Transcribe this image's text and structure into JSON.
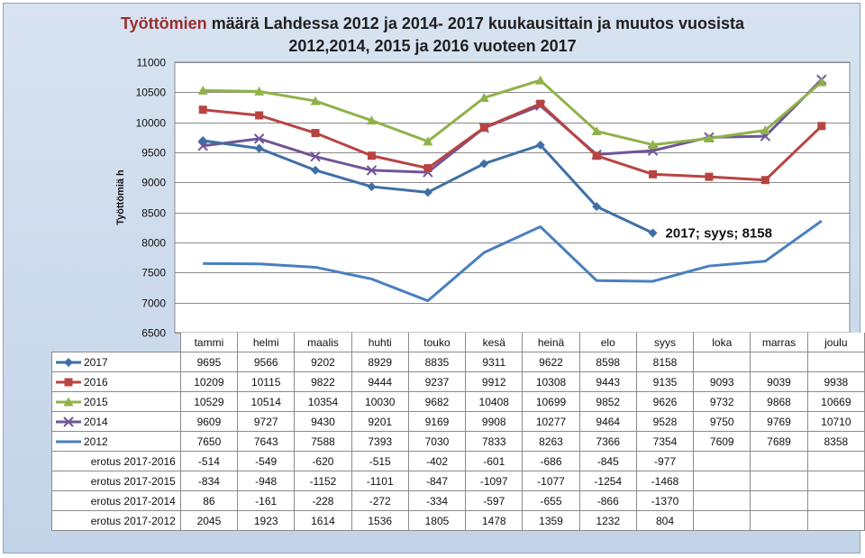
{
  "title": {
    "part1": "Työttömien",
    "part2": " määrä Lahdessa 2012 ja 2014- 2017 kuukausittain ja muutos vuosista",
    "line2": "2012,2014, 2015 ja 2016 vuoteen 2017"
  },
  "chart_data": {
    "type": "line",
    "title": "Työttömien määrä Lahdessa 2012 ja 2014- 2017 kuukausittain ja muutos vuosista 2012,2014, 2015 ja 2016 vuoteen 2017",
    "ylabel": "Työttömiä h",
    "ylim": [
      6500,
      11000
    ],
    "yticks": [
      6500,
      7000,
      7500,
      8000,
      8500,
      9000,
      9500,
      10000,
      10500,
      11000
    ],
    "grid": true,
    "categories": [
      "tammi",
      "helmi",
      "maalis",
      "huhti",
      "touko",
      "kesä",
      "heinä",
      "elo",
      "syys",
      "loka",
      "marras",
      "joulu"
    ],
    "series": [
      {
        "name": "2017",
        "color": "#3f6fa6",
        "marker": "diamond",
        "values": [
          9695,
          9566,
          9202,
          8929,
          8835,
          9311,
          9622,
          8598,
          8158,
          null,
          null,
          null
        ]
      },
      {
        "name": "2016",
        "color": "#b84442",
        "marker": "square",
        "values": [
          10209,
          10115,
          9822,
          9444,
          9237,
          9912,
          10308,
          9443,
          9135,
          9093,
          9039,
          9938
        ]
      },
      {
        "name": "2015",
        "color": "#8fb24a",
        "marker": "triangle",
        "values": [
          10529,
          10514,
          10354,
          10030,
          9682,
          10408,
          10699,
          9852,
          9626,
          9732,
          9868,
          10669
        ]
      },
      {
        "name": "2014",
        "color": "#6f5696",
        "marker": "x",
        "values": [
          9609,
          9727,
          9430,
          9201,
          9169,
          9908,
          10277,
          9464,
          9528,
          9750,
          9769,
          10710
        ]
      },
      {
        "name": "2012",
        "color": "#4a7fc0",
        "marker": "none",
        "values": [
          7650,
          7643,
          7588,
          7393,
          7030,
          7833,
          8263,
          7366,
          7354,
          7609,
          7689,
          8358
        ]
      }
    ],
    "diff_rows": [
      {
        "name": "erotus 2017-2016",
        "values": [
          -514,
          -549,
          -620,
          -515,
          -402,
          -601,
          -686,
          -845,
          -977,
          null,
          null,
          null
        ]
      },
      {
        "name": "erotus 2017-2015",
        "values": [
          -834,
          -948,
          -1152,
          -1101,
          -847,
          -1097,
          -1077,
          -1254,
          -1468,
          null,
          null,
          null
        ]
      },
      {
        "name": "erotus 2017-2014",
        "values": [
          86,
          -161,
          -228,
          -272,
          -334,
          -597,
          -655,
          -866,
          -1370,
          null,
          null,
          null
        ]
      },
      {
        "name": "erotus 2017-2012",
        "values": [
          2045,
          1923,
          1614,
          1536,
          1805,
          1478,
          1359,
          1232,
          804,
          null,
          null,
          null
        ]
      }
    ],
    "annotation": {
      "text": "2017; syys; 8158",
      "series": "2017",
      "category": "syys"
    }
  }
}
